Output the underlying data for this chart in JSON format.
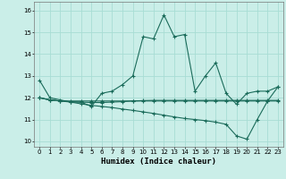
{
  "xlabel": "Humidex (Indice chaleur)",
  "bg_color": "#caeee8",
  "grid_color": "#a8ddd4",
  "line_color": "#1a6b5a",
  "xlim": [
    -0.5,
    23.5
  ],
  "ylim": [
    9.75,
    16.4
  ],
  "yticks": [
    10,
    11,
    12,
    13,
    14,
    15,
    16
  ],
  "xticks": [
    0,
    1,
    2,
    3,
    4,
    5,
    6,
    7,
    8,
    9,
    10,
    11,
    12,
    13,
    14,
    15,
    16,
    17,
    18,
    19,
    20,
    21,
    22,
    23
  ],
  "series0": [
    12.8,
    12.0,
    11.9,
    11.8,
    11.8,
    11.6,
    12.2,
    12.3,
    12.6,
    13.0,
    14.8,
    14.7,
    15.8,
    14.8,
    14.9,
    12.3,
    13.0,
    13.6,
    12.2,
    11.7,
    12.2,
    12.3,
    12.3,
    12.5
  ],
  "series1": [
    12.0,
    11.9,
    11.85,
    11.85,
    11.85,
    11.85,
    11.85,
    11.85,
    11.85,
    11.85,
    11.85,
    11.85,
    11.85,
    11.85,
    11.85,
    11.85,
    11.85,
    11.85,
    11.85,
    11.85,
    11.85,
    11.85,
    11.85,
    11.85
  ],
  "series2": [
    12.0,
    11.9,
    11.85,
    11.8,
    11.72,
    11.65,
    11.6,
    11.55,
    11.48,
    11.42,
    11.35,
    11.28,
    11.2,
    11.12,
    11.05,
    11.0,
    10.95,
    10.88,
    10.78,
    10.25,
    10.1,
    11.0,
    11.85,
    12.5
  ],
  "series3": [
    12.0,
    11.9,
    11.85,
    11.82,
    11.8,
    11.78,
    11.78,
    11.8,
    11.82,
    11.85,
    11.87,
    11.88,
    11.88,
    11.88,
    11.88,
    11.88,
    11.88,
    11.88,
    11.88,
    11.88,
    11.88,
    11.88,
    11.88,
    11.88
  ]
}
